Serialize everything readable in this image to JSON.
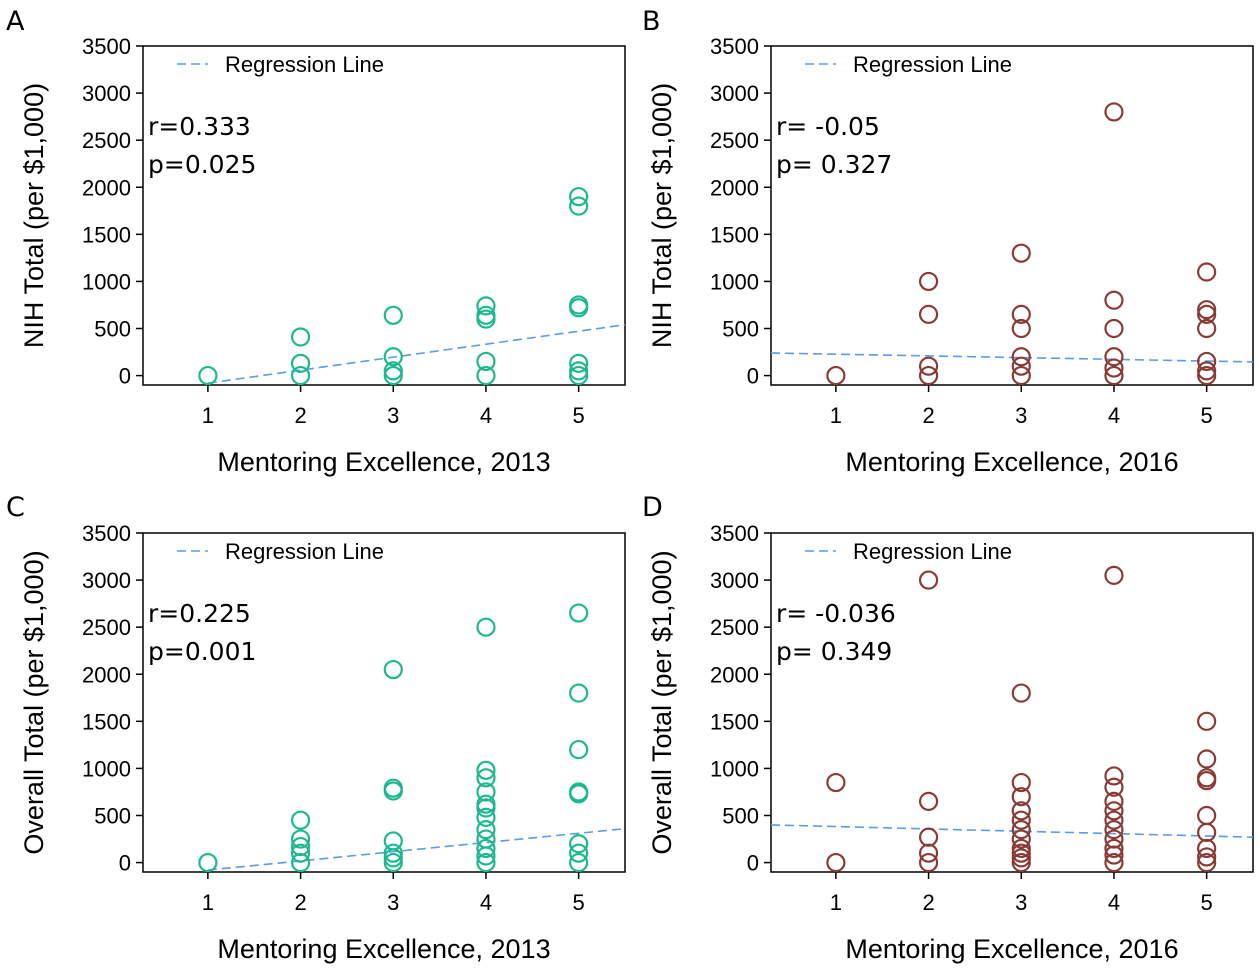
{
  "colors": {
    "teal": "#1db88f",
    "brown": "#8a3b36",
    "regression": "#5b9be8",
    "axis": "#000000"
  },
  "chart_data": [
    {
      "panel": "A",
      "type": "scatter",
      "xlabel": "Mentoring Excellence, 2013",
      "ylabel": "NIH Total (per $1,000)",
      "xlim": [
        0.3,
        5.5
      ],
      "ylim": [
        -100,
        3500
      ],
      "xticks": [
        "1",
        "2",
        "3",
        "4",
        "5"
      ],
      "yticks": [
        "0",
        "500",
        "1000",
        "1500",
        "2000",
        "2500",
        "3000",
        "3500"
      ],
      "legend": "Regression Line",
      "r_text": "r=0.333",
      "p_text": "p=0.025",
      "marker_color": "teal",
      "regression": [
        [
          1,
          -80
        ],
        [
          5.5,
          540
        ]
      ],
      "points": [
        [
          1,
          0
        ],
        [
          2,
          0
        ],
        [
          2,
          130
        ],
        [
          2,
          410
        ],
        [
          3,
          0
        ],
        [
          3,
          50
        ],
        [
          3,
          200
        ],
        [
          3,
          640
        ],
        [
          4,
          0
        ],
        [
          4,
          150
        ],
        [
          4,
          600
        ],
        [
          4,
          640
        ],
        [
          4,
          740
        ],
        [
          5,
          0
        ],
        [
          5,
          50
        ],
        [
          5,
          130
        ],
        [
          5,
          720
        ],
        [
          5,
          750
        ],
        [
          5,
          1800
        ],
        [
          5,
          1900
        ]
      ]
    },
    {
      "panel": "B",
      "type": "scatter",
      "xlabel": "Mentoring Excellence, 2016",
      "ylabel": "NIH Total (per $1,000)",
      "xlim": [
        0.3,
        5.5
      ],
      "ylim": [
        -100,
        3500
      ],
      "xticks": [
        "1",
        "2",
        "3",
        "4",
        "5"
      ],
      "yticks": [
        "0",
        "500",
        "1000",
        "1500",
        "2000",
        "2500",
        "3000",
        "3500"
      ],
      "legend": "Regression Line",
      "r_text": "r= -0.05",
      "p_text": "p= 0.327",
      "marker_color": "brown",
      "regression": [
        [
          0.3,
          240
        ],
        [
          5.5,
          145
        ]
      ],
      "points": [
        [
          1,
          0
        ],
        [
          2,
          0
        ],
        [
          2,
          100
        ],
        [
          2,
          650
        ],
        [
          2,
          1000
        ],
        [
          3,
          0
        ],
        [
          3,
          100
        ],
        [
          3,
          200
        ],
        [
          3,
          500
        ],
        [
          3,
          650
        ],
        [
          3,
          1300
        ],
        [
          4,
          0
        ],
        [
          4,
          80
        ],
        [
          4,
          200
        ],
        [
          4,
          500
        ],
        [
          4,
          800
        ],
        [
          4,
          2800
        ],
        [
          5,
          0
        ],
        [
          5,
          50
        ],
        [
          5,
          150
        ],
        [
          5,
          500
        ],
        [
          5,
          650
        ],
        [
          5,
          700
        ],
        [
          5,
          1100
        ]
      ]
    },
    {
      "panel": "C",
      "type": "scatter",
      "xlabel": "Mentoring Excellence, 2013",
      "ylabel": "Overall Total (per $1,000)",
      "xlim": [
        0.3,
        5.5
      ],
      "ylim": [
        -100,
        3500
      ],
      "xticks": [
        "1",
        "2",
        "3",
        "4",
        "5"
      ],
      "yticks": [
        "0",
        "500",
        "1000",
        "1500",
        "2000",
        "2500",
        "3000",
        "3500"
      ],
      "legend": "Regression Line",
      "r_text": "r=0.225",
      "p_text": "p=0.001",
      "marker_color": "teal",
      "regression": [
        [
          1,
          -80
        ],
        [
          5.5,
          360
        ]
      ],
      "points": [
        [
          1,
          0
        ],
        [
          2,
          0
        ],
        [
          2,
          100
        ],
        [
          2,
          170
        ],
        [
          2,
          250
        ],
        [
          2,
          450
        ],
        [
          3,
          0
        ],
        [
          3,
          50
        ],
        [
          3,
          100
        ],
        [
          3,
          230
        ],
        [
          3,
          760
        ],
        [
          3,
          790
        ],
        [
          3,
          2050
        ],
        [
          4,
          0
        ],
        [
          4,
          70
        ],
        [
          4,
          150
        ],
        [
          4,
          250
        ],
        [
          4,
          350
        ],
        [
          4,
          480
        ],
        [
          4,
          580
        ],
        [
          4,
          620
        ],
        [
          4,
          750
        ],
        [
          4,
          900
        ],
        [
          4,
          980
        ],
        [
          4,
          2500
        ],
        [
          5,
          0
        ],
        [
          5,
          100
        ],
        [
          5,
          200
        ],
        [
          5,
          730
        ],
        [
          5,
          750
        ],
        [
          5,
          1200
        ],
        [
          5,
          1800
        ],
        [
          5,
          2650
        ]
      ]
    },
    {
      "panel": "D",
      "type": "scatter",
      "xlabel": "Mentoring Excellence, 2016",
      "ylabel": "Overall Total (per $1,000)",
      "xlim": [
        0.3,
        5.5
      ],
      "ylim": [
        -100,
        3500
      ],
      "xticks": [
        "1",
        "2",
        "3",
        "4",
        "5"
      ],
      "yticks": [
        "0",
        "500",
        "1000",
        "1500",
        "2000",
        "2500",
        "3000",
        "3500"
      ],
      "legend": "Regression Line",
      "r_text": "r= -0.036",
      "p_text": "p= 0.349",
      "marker_color": "brown",
      "regression": [
        [
          0.3,
          400
        ],
        [
          5.5,
          270
        ]
      ],
      "points": [
        [
          1,
          0
        ],
        [
          1,
          850
        ],
        [
          2,
          0
        ],
        [
          2,
          100
        ],
        [
          2,
          270
        ],
        [
          2,
          650
        ],
        [
          2,
          3000
        ],
        [
          3,
          0
        ],
        [
          3,
          50
        ],
        [
          3,
          100
        ],
        [
          3,
          150
        ],
        [
          3,
          250
        ],
        [
          3,
          350
        ],
        [
          3,
          450
        ],
        [
          3,
          550
        ],
        [
          3,
          700
        ],
        [
          3,
          850
        ],
        [
          3,
          1800
        ],
        [
          4,
          0
        ],
        [
          4,
          80
        ],
        [
          4,
          150
        ],
        [
          4,
          250
        ],
        [
          4,
          350
        ],
        [
          4,
          450
        ],
        [
          4,
          550
        ],
        [
          4,
          650
        ],
        [
          4,
          800
        ],
        [
          4,
          920
        ],
        [
          4,
          3050
        ],
        [
          5,
          0
        ],
        [
          5,
          60
        ],
        [
          5,
          150
        ],
        [
          5,
          320
        ],
        [
          5,
          500
        ],
        [
          5,
          870
        ],
        [
          5,
          900
        ],
        [
          5,
          1100
        ],
        [
          5,
          1500
        ]
      ]
    }
  ]
}
